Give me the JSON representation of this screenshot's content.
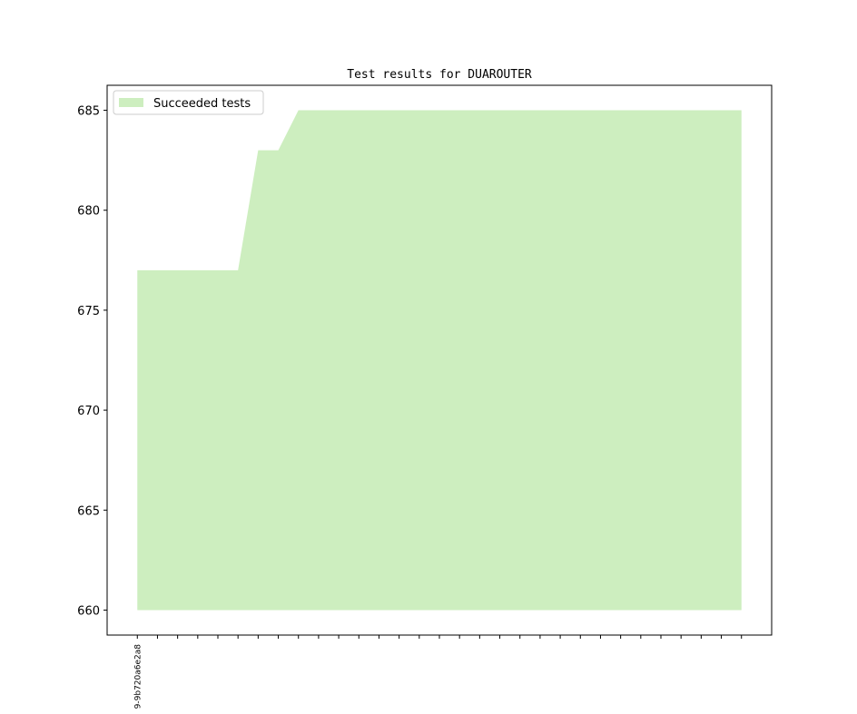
{
  "chart_data": {
    "type": "area",
    "title": "Test results for DUAROUTER",
    "categories": [
      "9-9b720a6e2a8",
      null,
      null,
      null,
      null,
      null,
      null,
      null,
      null,
      null,
      null,
      null,
      null,
      null,
      null,
      null,
      null,
      null,
      null,
      null,
      null,
      null,
      null,
      null,
      null,
      null,
      null,
      null,
      null,
      null,
      null
    ],
    "series": [
      {
        "name": "Succeeded tests",
        "color": "#cdeebf",
        "values": [
          677,
          677,
          677,
          677,
          677,
          677,
          683,
          683,
          685,
          685,
          685,
          685,
          685,
          685,
          685,
          685,
          685,
          685,
          685,
          685,
          685,
          685,
          685,
          685,
          685,
          685,
          685,
          685,
          685,
          685,
          685
        ]
      }
    ],
    "baseline": 660,
    "ylim": [
      658.75,
      686.25
    ],
    "yticks": [
      660,
      665,
      670,
      675,
      680,
      685
    ],
    "grid": false,
    "legend": "upper left"
  }
}
